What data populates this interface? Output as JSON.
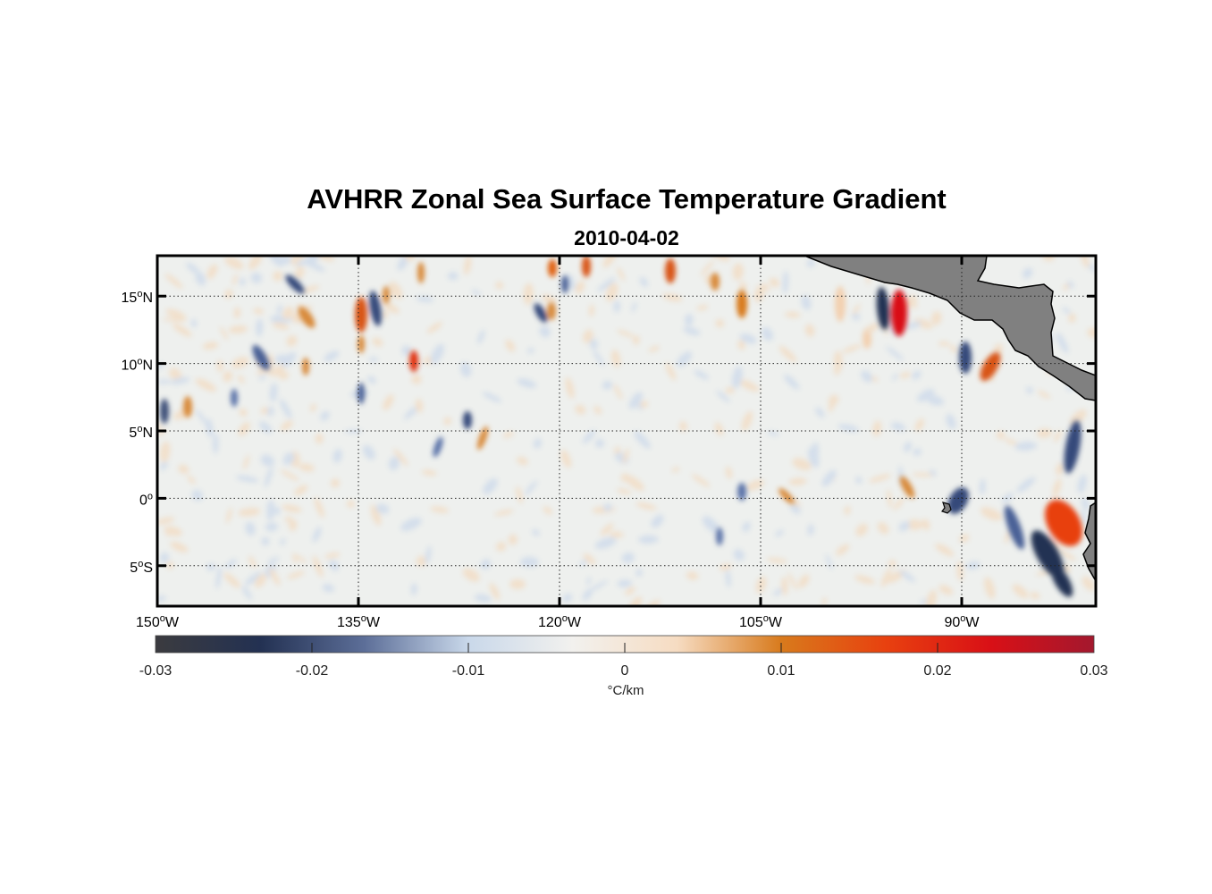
{
  "title": "AVHRR Zonal Sea Surface Temperature Gradient",
  "subtitle": "2010-04-02",
  "map": {
    "lon_range": [
      -150,
      -80
    ],
    "lat_range": [
      -8,
      18
    ],
    "lon_ticks": [
      {
        "value": -150,
        "deg": "150",
        "hemi": "W"
      },
      {
        "value": -135,
        "deg": "135",
        "hemi": "W"
      },
      {
        "value": -120,
        "deg": "120",
        "hemi": "W"
      },
      {
        "value": -105,
        "deg": "105",
        "hemi": "W"
      },
      {
        "value": -90,
        "deg": "90",
        "hemi": "W"
      }
    ],
    "lat_ticks": [
      {
        "value": 15,
        "deg": "15",
        "hemi": "N"
      },
      {
        "value": 10,
        "deg": "10",
        "hemi": "N"
      },
      {
        "value": 5,
        "deg": "5",
        "hemi": "N"
      },
      {
        "value": 0,
        "deg": "0",
        "hemi": ""
      },
      {
        "value": -5,
        "deg": "5",
        "hemi": "S"
      }
    ],
    "grid": true,
    "land_color": "#808080"
  },
  "colorbar": {
    "min": -0.03,
    "max": 0.03,
    "ticks": [
      "-0.03",
      "-0.02",
      "-0.01",
      "0",
      "0.01",
      "0.02",
      "0.03"
    ],
    "unit_label": "°C/km",
    "colors": [
      "#3b3b3f",
      "#233152",
      "#5c6e98",
      "#c9d8ea",
      "#f2f1ee",
      "#f6dcc2",
      "#d87a1c",
      "#e8410f",
      "#d91016",
      "#a3182e"
    ]
  }
}
